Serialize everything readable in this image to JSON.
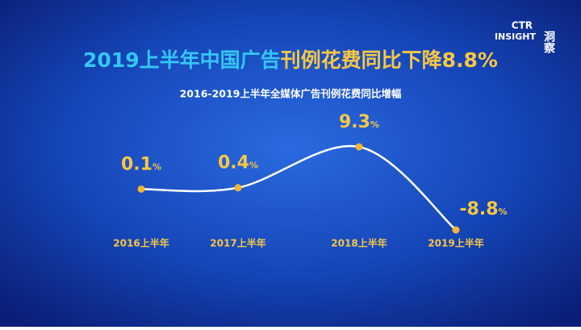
{
  "logo": {
    "brand": "CTR",
    "sub": "INSIGHT",
    "cn": "洞察"
  },
  "chart_data": {
    "type": "line",
    "title_parts": [
      "2019上半年中国广告",
      "刊例花费同比下降8.8%"
    ],
    "subtitle": "2016-2019上半年全媒体广告刊例花费同比增幅",
    "categories": [
      "2016上半年",
      "2017上半年",
      "2018上半年",
      "2019上半年"
    ],
    "values": [
      0.1,
      0.4,
      9.3,
      -8.8
    ],
    "unit": "%",
    "line_color": "#ffffff",
    "marker_color": "#f2b632",
    "label_color": "#f7c744",
    "title_colors": [
      "#35c6f4",
      "#f7c744"
    ]
  }
}
